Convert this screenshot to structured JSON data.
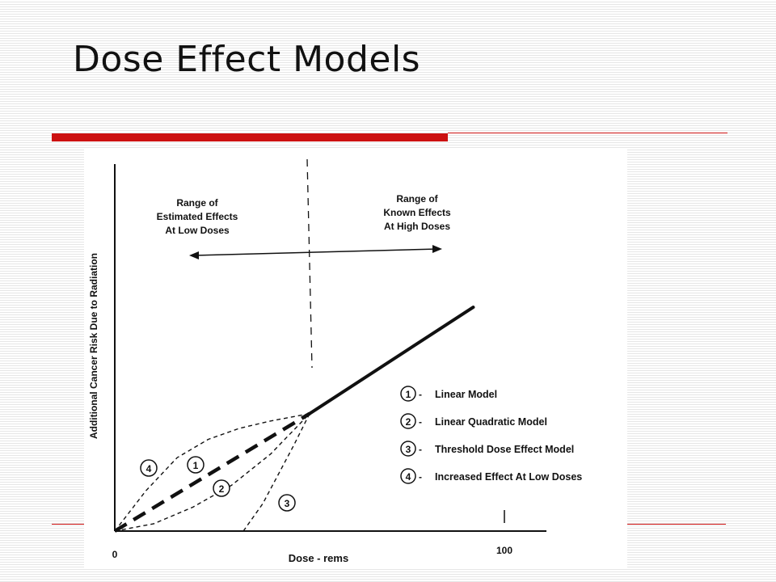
{
  "slide": {
    "title": "Dose Effect Models",
    "accent_color": "#cc1111"
  },
  "chart_data": {
    "type": "line",
    "title": "",
    "xlabel": "Dose - rems",
    "ylabel": "Additional Cancer Risk Due to Radiation",
    "x_tick_labels": [
      "0",
      "100"
    ],
    "xlim": [
      0,
      100
    ],
    "ylim": [
      0,
      100
    ],
    "divider_dose": 50,
    "region_labels": {
      "low": [
        "Range of",
        "Estimated Effects",
        "At Low Doses"
      ],
      "high": [
        "Range of",
        "Known Effects",
        "At High Doses"
      ]
    },
    "known_effect_line": {
      "x": [
        50,
        92
      ],
      "y": [
        32,
        61
      ]
    },
    "series": [
      {
        "name": "Linear Model",
        "number": "1",
        "x": [
          0,
          50
        ],
        "y": [
          0,
          32
        ]
      },
      {
        "name": "Linear Quadratic Model",
        "number": "2",
        "x": [
          0,
          10,
          20,
          30,
          40,
          50
        ],
        "y": [
          0,
          2,
          6.5,
          12.5,
          21,
          32
        ]
      },
      {
        "name": "Threshold Dose Effect Model",
        "number": "3",
        "x": [
          33,
          38,
          42,
          46,
          50
        ],
        "y": [
          0,
          7.5,
          15.5,
          23.5,
          32
        ]
      },
      {
        "name": "Increased Effect At Low Doses",
        "number": "4",
        "x": [
          0,
          8,
          16,
          24,
          32,
          40,
          50
        ],
        "y": [
          0,
          11,
          20,
          25,
          28,
          30,
          32
        ]
      }
    ],
    "grid": false,
    "legend_position": "lower-right"
  }
}
